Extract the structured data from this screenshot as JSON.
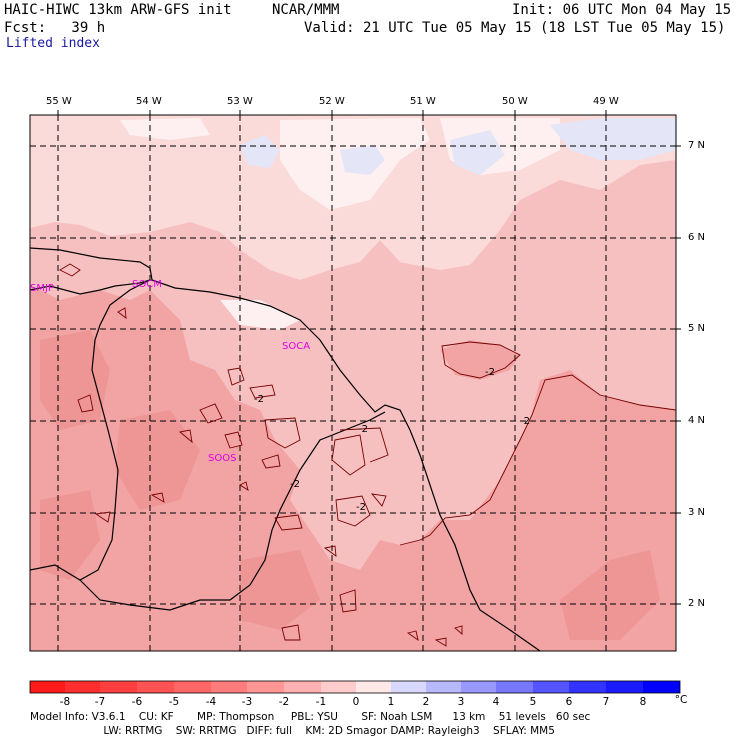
{
  "header": {
    "model": "HAIC-HIWC 13km ARW-GFS init",
    "org": "NCAR/MMM",
    "init": "Init: 06 UTC Mon 04 May 15",
    "fcst": "Fcst:   39 h",
    "valid": "Valid: 21 UTC Tue 05 May 15 (18 LST Tue 05 May 15)",
    "field": "Lifted index"
  },
  "map": {
    "lon_labels": [
      "55 W",
      "54 W",
      "53 W",
      "52 W",
      "51 W",
      "50 W",
      "49 W"
    ],
    "lat_labels": [
      "7 N",
      "6 N",
      "5 N",
      "4 N",
      "3 N",
      "2 N"
    ],
    "stations": [
      "SMJP",
      "SOCM",
      "SOCA",
      "SOOS"
    ],
    "contour_labels": [
      "-2",
      "-2",
      "-2",
      "-2",
      "-2",
      "-2"
    ],
    "colors": {
      "neg3": "#f2a3a3",
      "neg2": "#f7c0c0",
      "neg1": "#fbdada",
      "zero": "#fef0f0",
      "pos": "#e4e6f8",
      "border": "#000000",
      "grid": "#000000",
      "station": "#e000e0"
    }
  },
  "colorbar": {
    "ticks": [
      "-8",
      "-7",
      "-6",
      "-5",
      "-4",
      "-3",
      "-2",
      "-1",
      "0",
      "1",
      "2",
      "3",
      "4",
      "5",
      "6",
      "7",
      "8"
    ],
    "unit": "°C",
    "colors": [
      "#ff1a1a",
      "#ff3a3a",
      "#ff5252",
      "#ff6b6b",
      "#ff8484",
      "#ff9e9e",
      "#ffb8b8",
      "#ffd2d2",
      "#ffecec",
      "#ffffff",
      "#dcdcff",
      "#b8b8ff",
      "#9494ff",
      "#7070ff",
      "#4c4cff",
      "#2828ff",
      "#0404ff"
    ]
  },
  "footer": {
    "line1": "Model Info: V3.6.1    CU: KF       MP: Thompson     PBL: YSU       SF: Noah LSM      13 km    51 levels   60 sec",
    "line2": "                      LW: RRTMG    SW: RRTMG   DIFF: full    KM: 2D Smagor DAMP: Rayleigh3    SFLAY: MM5"
  }
}
